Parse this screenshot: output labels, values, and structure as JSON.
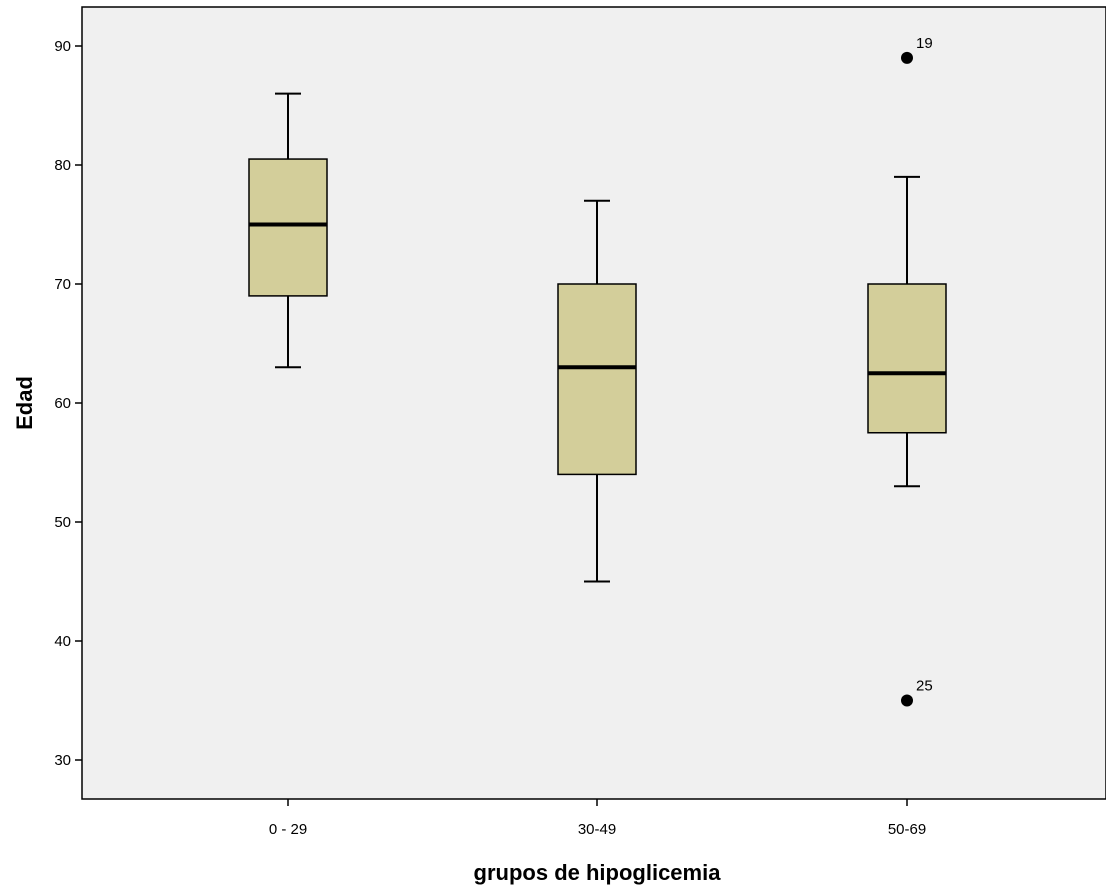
{
  "chart_data": {
    "type": "boxplot",
    "title": "",
    "xlabel": "grupos de hipoglicemia",
    "ylabel": "Edad",
    "ylim": [
      27,
      95
    ],
    "yticks": [
      30,
      40,
      50,
      60,
      70,
      80,
      90
    ],
    "categories": [
      "0 - 29",
      "30-49",
      "50-69"
    ],
    "boxes": [
      {
        "category": "0 - 29",
        "whisker_low": 63,
        "q1": 69,
        "median": 75,
        "q3": 80.5,
        "whisker_high": 86,
        "outliers": []
      },
      {
        "category": "30-49",
        "whisker_low": 45,
        "q1": 54,
        "median": 63,
        "q3": 70,
        "whisker_high": 77,
        "outliers": []
      },
      {
        "category": "50-69",
        "whisker_low": 53,
        "q1": 57.5,
        "median": 62.5,
        "q3": 70,
        "whisker_high": 79,
        "outliers": [
          {
            "value": 89,
            "label": "19"
          },
          {
            "value": 35,
            "label": "25"
          }
        ]
      }
    ],
    "grid": false,
    "legend": "none",
    "colors": {
      "box_fill": "#D3CE9A",
      "plot_background": "#F0F0F0",
      "stroke": "#000000"
    }
  }
}
